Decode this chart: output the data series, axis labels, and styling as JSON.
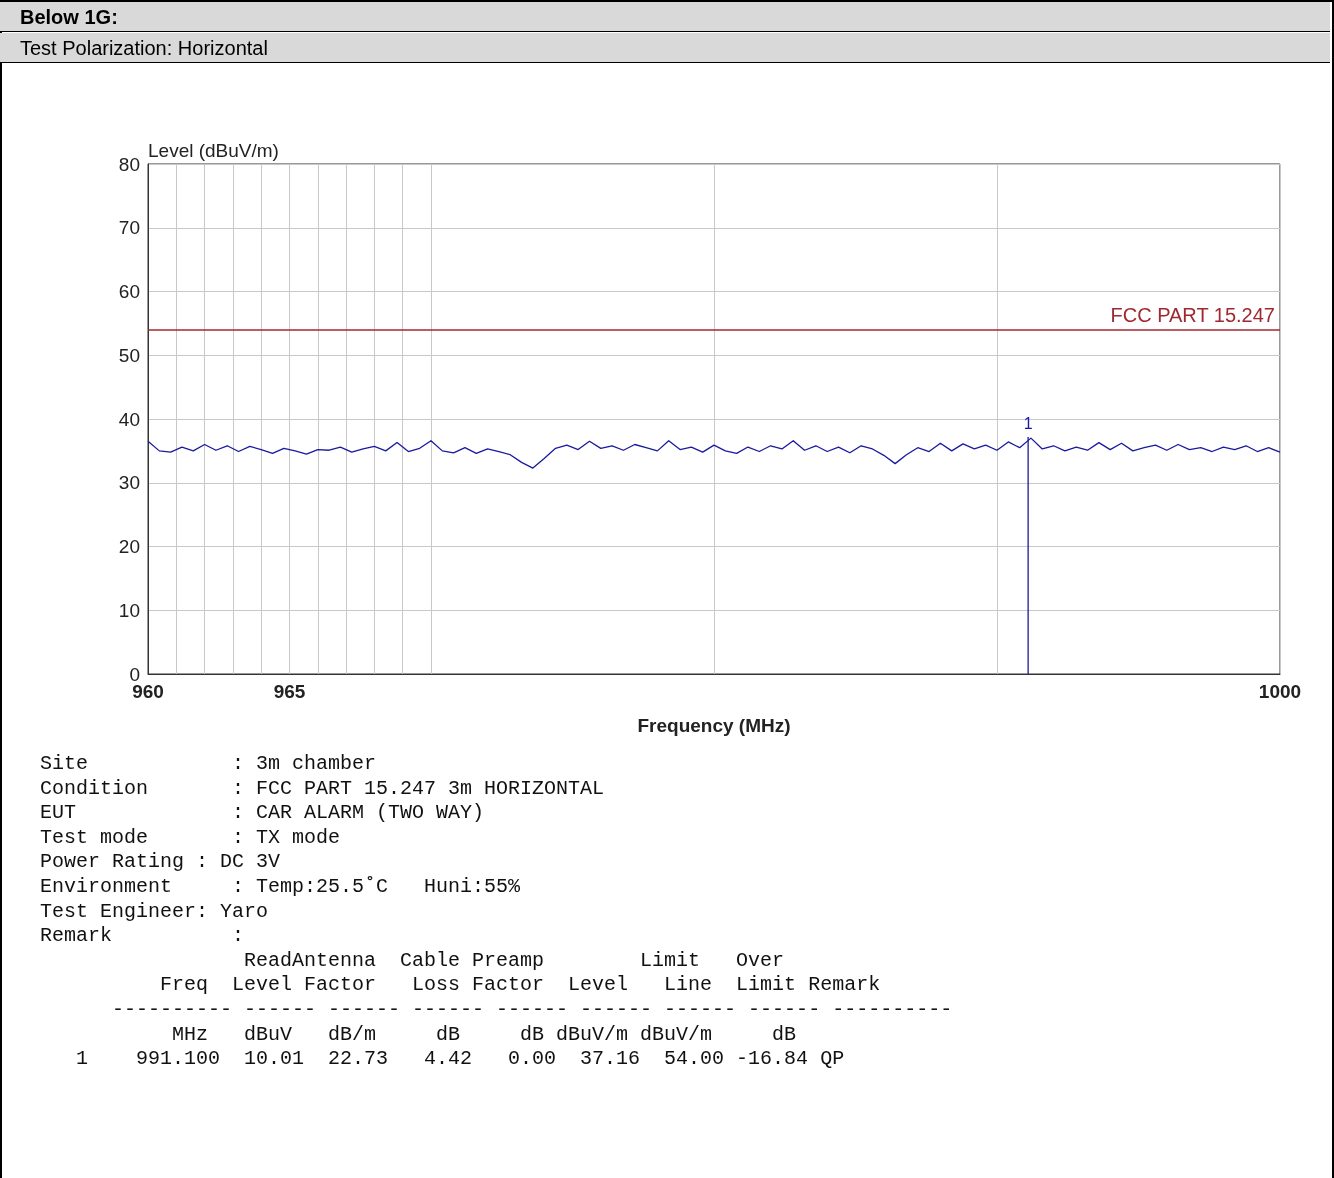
{
  "chart_data": {
    "type": "line",
    "title": "Below 1G:",
    "subtitle": "Test Polarization: Horizontal",
    "xlabel": "Frequency (MHz)",
    "ylabel": "Level (dBuV/m)",
    "xlim": [
      960,
      1000
    ],
    "xticks": [
      960,
      {
        "value": 961,
        "label": null
      },
      {
        "value": 962,
        "label": null
      },
      {
        "value": 963,
        "label": null
      },
      {
        "value": 964,
        "label": null
      },
      965,
      {
        "value": 966,
        "label": null
      },
      {
        "value": 967,
        "label": null
      },
      {
        "value": 968,
        "label": null
      },
      {
        "value": 969,
        "label": null
      },
      {
        "value": 970,
        "label": null
      },
      {
        "value": 980,
        "label": null
      },
      {
        "value": 990,
        "label": null
      },
      1000
    ],
    "ylim": [
      0,
      80
    ],
    "yticks": [
      0,
      10,
      20,
      30,
      40,
      50,
      60,
      70,
      80
    ],
    "grid": true,
    "marker": "none",
    "line_style": "solid",
    "x": [
      960,
      960.4,
      960.8,
      961.2,
      961.6,
      962,
      962.4,
      962.8,
      963.2,
      963.6,
      964,
      964.4,
      964.8,
      965.2,
      965.6,
      966,
      966.4,
      966.8,
      967.2,
      967.6,
      968,
      968.4,
      968.8,
      969.2,
      969.6,
      970,
      970.4,
      970.8,
      971.2,
      971.6,
      972,
      972.4,
      972.8,
      973.2,
      973.6,
      974,
      974.4,
      974.8,
      975.2,
      975.6,
      976,
      976.4,
      976.8,
      977.2,
      977.6,
      978,
      978.4,
      978.8,
      979.2,
      979.6,
      980,
      980.4,
      980.8,
      981.2,
      981.6,
      982,
      982.4,
      982.8,
      983.2,
      983.6,
      984,
      984.4,
      984.8,
      985.2,
      985.6,
      986,
      986.4,
      986.8,
      987.2,
      987.6,
      988,
      988.4,
      988.8,
      989.2,
      989.6,
      990,
      990.4,
      990.8,
      991.2,
      991.6,
      992,
      992.4,
      992.8,
      993.2,
      993.6,
      994,
      994.4,
      994.8,
      995.2,
      995.6,
      996,
      996.4,
      996.8,
      997.2,
      997.6,
      998,
      998.4,
      998.8,
      999.2,
      999.6,
      1000
    ],
    "series": [
      {
        "color": "#1a1aa0",
        "values": [
          36.5,
          35.0,
          34.8,
          35.6,
          35.0,
          36.0,
          35.1,
          35.8,
          34.9,
          35.7,
          35.2,
          34.6,
          35.4,
          35.0,
          34.5,
          35.2,
          35.1,
          35.6,
          34.8,
          35.3,
          35.7,
          35.0,
          36.3,
          34.9,
          35.4,
          36.6,
          35.0,
          34.7,
          35.5,
          34.6,
          35.3,
          34.9,
          34.4,
          33.2,
          32.3,
          33.8,
          35.4,
          35.9,
          35.2,
          36.5,
          35.4,
          35.8,
          35.1,
          36.0,
          35.5,
          35.0,
          36.6,
          35.2,
          35.6,
          34.8,
          35.9,
          35.0,
          34.6,
          35.6,
          34.9,
          35.8,
          35.3,
          36.6,
          35.1,
          35.8,
          34.9,
          35.6,
          34.7,
          35.8,
          35.3,
          34.3,
          33.0,
          34.4,
          35.5,
          34.9,
          36.2,
          35.0,
          36.1,
          35.3,
          35.9,
          35.1,
          36.4,
          35.5,
          37.0,
          35.3,
          35.8,
          35.0,
          35.6,
          35.1,
          36.3,
          35.2,
          36.2,
          35.0,
          35.5,
          35.9,
          35.1,
          36.0,
          35.2,
          35.5,
          34.9,
          35.6,
          35.2,
          35.8,
          34.9,
          35.5,
          34.8
        ]
      },
      {
        "color": "#1a1aa0",
        "x": [
          991.1,
          991.1
        ],
        "values": [
          0,
          37.16
        ]
      }
    ],
    "ref_lines": [
      {
        "axis": "y",
        "value": 54,
        "label": "FCC PART 15.247",
        "color": "#a02830"
      }
    ],
    "annotations": [
      {
        "text": "1",
        "x": 991.1,
        "y": 37.16
      },
      "Site            : 3m chamber",
      "Condition       : FCC PART 15.247 3m HORIZONTAL",
      "EUT             : CAR ALARM (TWO WAY)",
      "Test mode       : TX mode",
      "Power Rating : DC 3V",
      "Environment     : Temp:25.5˚C   Huni:55%",
      "Test Engineer: Yaro",
      "Remark          :",
      "                 ReadAntenna  Cable Preamp        Limit   Over",
      "          Freq  Level Factor   Loss Factor  Level   Line  Limit Remark",
      "      ---------- ------ ------ ------ ------ ------ ------ ------ ----------",
      "           MHz   dBuV   dB/m     dB     dB dBuV/m dBuV/m     dB",
      "   1    991.100  10.01  22.73   4.42   0.00  37.16  54.00 -16.84 QP"
    ]
  }
}
